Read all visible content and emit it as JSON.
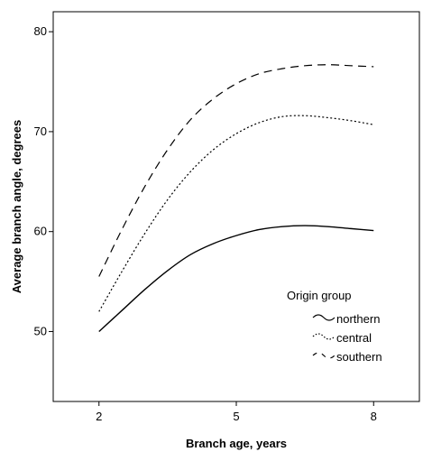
{
  "chart_data": {
    "type": "line",
    "xlabel": "Branch age, years",
    "ylabel": "Average branch angle, degrees",
    "xlim": [
      1,
      9
    ],
    "ylim": [
      43,
      82
    ],
    "xticks": [
      2,
      5,
      8
    ],
    "yticks": [
      50,
      60,
      70,
      80
    ],
    "grid": false,
    "legend": {
      "title": "Origin group",
      "placement": "bottom-right",
      "entries": [
        "northern",
        "central",
        "southern"
      ]
    },
    "series": [
      {
        "name": "northern",
        "style": "solid",
        "color": "#000000",
        "x": [
          2,
          2.5,
          3,
          3.5,
          4,
          4.5,
          5,
          5.5,
          6,
          6.5,
          7,
          7.5,
          8
        ],
        "y": [
          50.0,
          52.1,
          54.2,
          56.1,
          57.7,
          58.8,
          59.6,
          60.2,
          60.5,
          60.6,
          60.5,
          60.3,
          60.1
        ]
      },
      {
        "name": "central",
        "style": "dotted",
        "color": "#000000",
        "x": [
          2,
          2.5,
          3,
          3.5,
          4,
          4.5,
          5,
          5.5,
          6,
          6.5,
          7,
          7.5,
          8
        ],
        "y": [
          52.0,
          56.0,
          59.8,
          63.2,
          66.0,
          68.2,
          69.8,
          70.9,
          71.5,
          71.6,
          71.4,
          71.1,
          70.7
        ]
      },
      {
        "name": "southern",
        "style": "dashed",
        "color": "#000000",
        "x": [
          2,
          2.5,
          3,
          3.5,
          4,
          4.5,
          5,
          5.5,
          6,
          6.5,
          7,
          7.5,
          8
        ],
        "y": [
          55.5,
          60.2,
          64.5,
          68.2,
          71.2,
          73.3,
          74.8,
          75.8,
          76.3,
          76.6,
          76.7,
          76.6,
          76.5
        ]
      }
    ]
  }
}
